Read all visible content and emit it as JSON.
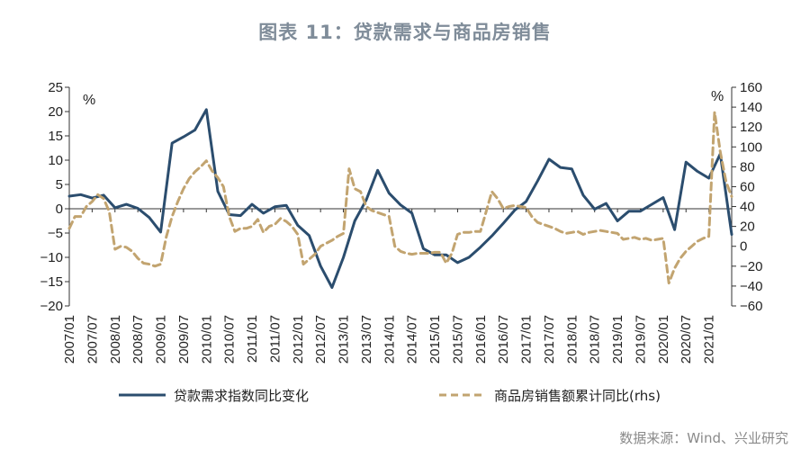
{
  "title": "图表 11：贷款需求与商品房销售",
  "source": "数据来源：Wind、兴业研究",
  "chart_data": {
    "type": "line",
    "left_axis": {
      "unit": "%",
      "ylim": [
        -20,
        25
      ],
      "ticks": [
        25,
        20,
        15,
        10,
        5,
        0,
        -5,
        -10,
        -15,
        -20
      ]
    },
    "right_axis": {
      "unit": "%",
      "ylim": [
        -60,
        160
      ],
      "ticks": [
        160,
        140,
        120,
        100,
        80,
        60,
        40,
        20,
        0,
        -20,
        -40,
        -60
      ]
    },
    "x_tick_labels": [
      "2007/01",
      "2007/07",
      "2008/01",
      "2008/07",
      "2009/01",
      "2009/07",
      "2010/01",
      "2010/07",
      "2011/01",
      "2011/07",
      "2012/01",
      "2012/07",
      "2013/01",
      "2013/07",
      "2014/01",
      "2014/07",
      "2015/01",
      "2015/07",
      "2016/01",
      "2016/07",
      "2017/01",
      "2017/07",
      "2018/01",
      "2018/07",
      "2019/01",
      "2019/07",
      "2020/01",
      "2020/07",
      "2021/01"
    ],
    "x_range": [
      2007.0,
      2021.5
    ],
    "grid": false,
    "legend_position": "bottom",
    "series": [
      {
        "name": "贷款需求指数同比变化",
        "axis": "left",
        "color": "#2b4d6e",
        "style": "solid",
        "x": [
          2007.0,
          2007.25,
          2007.5,
          2007.75,
          2008.0,
          2008.25,
          2008.5,
          2008.75,
          2009.0,
          2009.25,
          2009.5,
          2009.75,
          2010.0,
          2010.25,
          2010.5,
          2010.75,
          2011.0,
          2011.25,
          2011.5,
          2011.75,
          2012.0,
          2012.25,
          2012.5,
          2012.75,
          2013.0,
          2013.25,
          2013.5,
          2013.75,
          2014.0,
          2014.25,
          2014.5,
          2014.75,
          2015.0,
          2015.25,
          2015.5,
          2015.75,
          2016.0,
          2016.25,
          2016.5,
          2016.75,
          2017.0,
          2017.25,
          2017.5,
          2017.75,
          2018.0,
          2018.25,
          2018.5,
          2018.75,
          2019.0,
          2019.25,
          2019.5,
          2019.75,
          2020.0,
          2020.25,
          2020.5,
          2020.75,
          2021.0,
          2021.25,
          2021.5
        ],
        "values": [
          2.6,
          2.9,
          2.2,
          2.8,
          0.2,
          0.9,
          0.1,
          -1.8,
          -4.8,
          13.5,
          14.8,
          16.2,
          20.4,
          3.6,
          -1.2,
          -1.4,
          0.9,
          -0.9,
          0.4,
          0.7,
          -3.4,
          -5.5,
          -11.8,
          -16.2,
          -10.0,
          -2.5,
          1.8,
          7.9,
          3.2,
          0.8,
          -0.9,
          -8.2,
          -9.5,
          -9.5,
          -11.1,
          -10.0,
          -7.9,
          -5.6,
          -3.0,
          -0.3,
          1.5,
          5.7,
          10.2,
          8.5,
          8.2,
          2.8,
          -0.1,
          1.1,
          -2.5,
          -0.5,
          -0.5,
          0.9,
          2.3,
          -4.3,
          9.6,
          7.7,
          6.3,
          11.3,
          -5.3
        ]
      },
      {
        "name": "商品房销售额累计同比(rhs)",
        "axis": "right",
        "color": "#c2a470",
        "style": "dashed",
        "x": [
          2007.0,
          2007.125,
          2007.25,
          2007.375,
          2007.5,
          2007.625,
          2007.75,
          2007.875,
          2008.0,
          2008.125,
          2008.25,
          2008.375,
          2008.5,
          2008.625,
          2008.75,
          2008.875,
          2009.0,
          2009.125,
          2009.25,
          2009.375,
          2009.5,
          2009.625,
          2009.75,
          2009.875,
          2010.0,
          2010.125,
          2010.25,
          2010.375,
          2010.5,
          2010.625,
          2010.75,
          2010.875,
          2011.0,
          2011.125,
          2011.25,
          2011.375,
          2011.5,
          2011.625,
          2011.75,
          2011.875,
          2012.0,
          2012.125,
          2012.25,
          2012.375,
          2012.5,
          2012.625,
          2012.75,
          2012.875,
          2013.0,
          2013.125,
          2013.25,
          2013.375,
          2013.5,
          2013.625,
          2013.75,
          2013.875,
          2014.0,
          2014.125,
          2014.25,
          2014.375,
          2014.5,
          2014.625,
          2014.75,
          2014.875,
          2015.0,
          2015.125,
          2015.25,
          2015.375,
          2015.5,
          2015.625,
          2015.75,
          2015.875,
          2016.0,
          2016.125,
          2016.25,
          2016.375,
          2016.5,
          2016.625,
          2016.75,
          2016.875,
          2017.0,
          2017.125,
          2017.25,
          2017.375,
          2017.5,
          2017.625,
          2017.75,
          2017.875,
          2018.0,
          2018.125,
          2018.25,
          2018.375,
          2018.5,
          2018.625,
          2018.75,
          2018.875,
          2019.0,
          2019.125,
          2019.25,
          2019.375,
          2019.5,
          2019.625,
          2019.75,
          2019.875,
          2020.0,
          2020.125,
          2020.25,
          2020.375,
          2020.5,
          2020.625,
          2020.75,
          2020.875,
          2021.0,
          2021.125,
          2021.25,
          2021.375,
          2021.5
        ],
        "values": [
          18,
          30,
          30,
          40,
          45,
          52,
          48,
          35,
          -3,
          0,
          -1,
          -5,
          -12,
          -17,
          -18,
          -20,
          -18,
          10,
          30,
          45,
          58,
          68,
          75,
          80,
          86,
          76,
          69,
          60,
          30,
          15,
          18,
          18,
          20,
          27,
          14,
          20,
          22,
          28,
          25,
          20,
          12,
          -18,
          -13,
          -8,
          0,
          3,
          6,
          10,
          13,
          78,
          58,
          55,
          40,
          36,
          34,
          32,
          30,
          0,
          -5,
          -7,
          -8,
          -7,
          -7,
          -7,
          -6,
          -6,
          -17,
          -7,
          12,
          14,
          14,
          15,
          15,
          35,
          55,
          48,
          38,
          40,
          41,
          40,
          39,
          30,
          24,
          22,
          20,
          18,
          15,
          13,
          14,
          15,
          12,
          14,
          15,
          16,
          15,
          14,
          13,
          7,
          8,
          9,
          7,
          8,
          6,
          7,
          8,
          -37,
          -22,
          -12,
          -5,
          0,
          5,
          8,
          10,
          135,
          95,
          65,
          50
        ]
      }
    ]
  }
}
